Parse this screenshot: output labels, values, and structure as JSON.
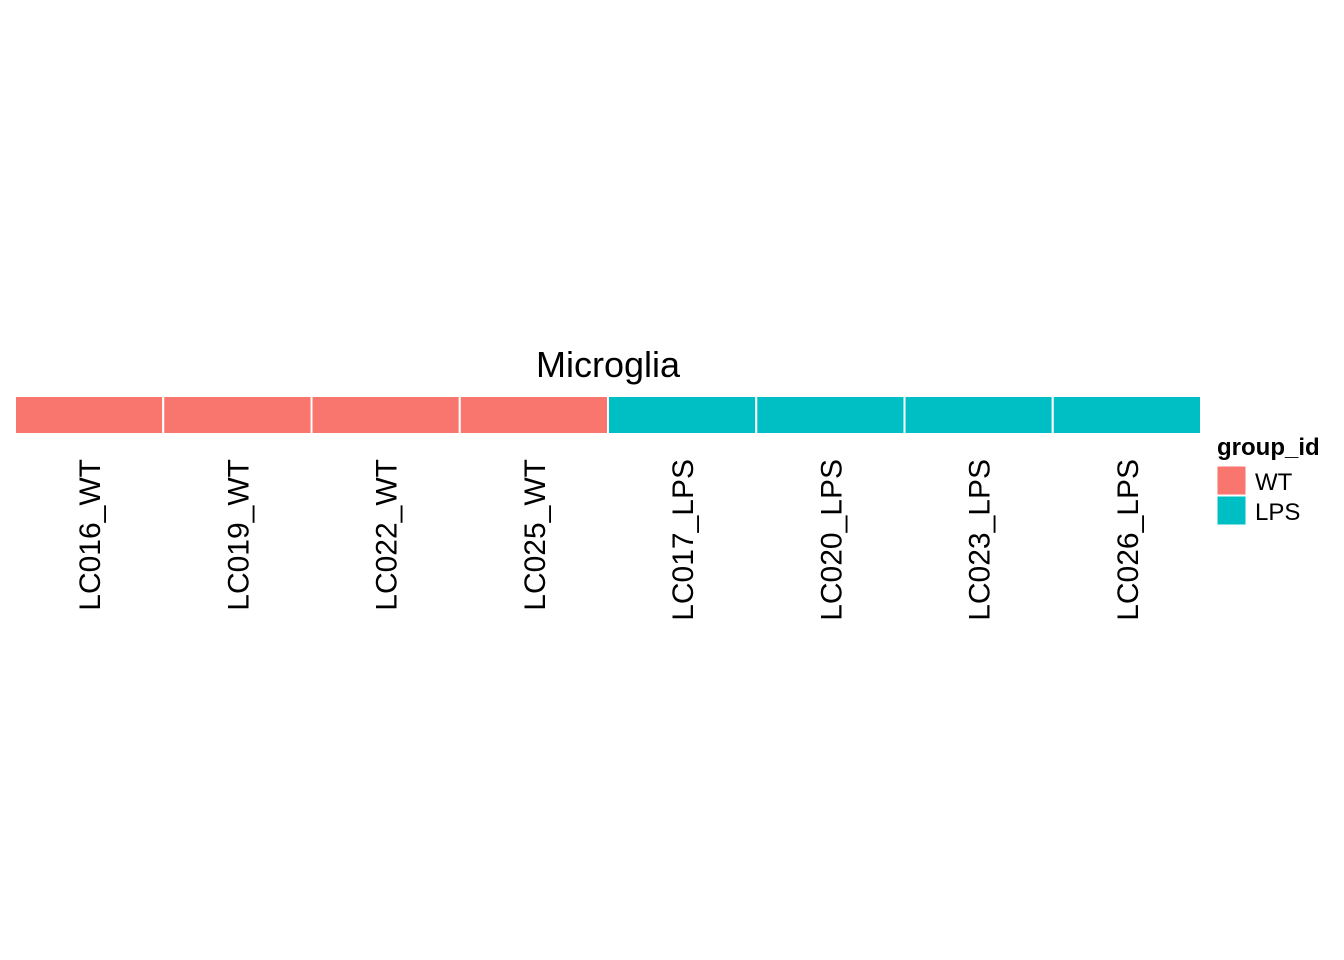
{
  "chart_data": {
    "type": "heatmap",
    "title": "Microglia",
    "categories": [
      "LC016_WT",
      "LC019_WT",
      "LC022_WT",
      "LC025_WT",
      "LC017_LPS",
      "LC020_LPS",
      "LC023_LPS",
      "LC026_LPS"
    ],
    "values": [
      "WT",
      "WT",
      "WT",
      "WT",
      "LPS",
      "LPS",
      "LPS",
      "LPS"
    ],
    "legend": {
      "title": "group_id",
      "placement": "right",
      "entries": [
        {
          "label": "WT",
          "color": "#F8766D"
        },
        {
          "label": "LPS",
          "color": "#00BFC4"
        }
      ]
    },
    "grid": false
  }
}
